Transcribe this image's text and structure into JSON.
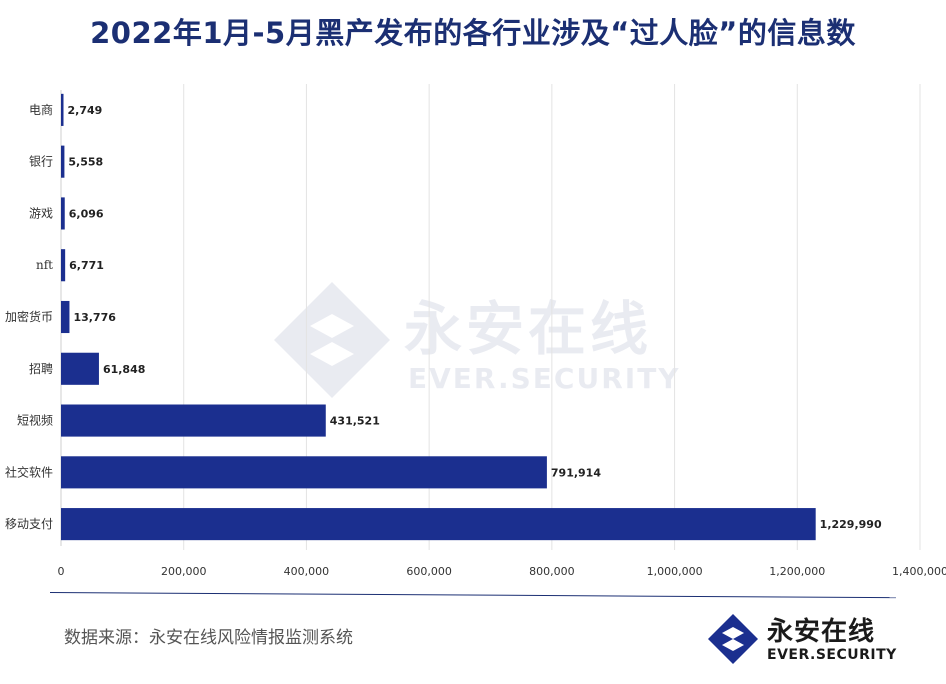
{
  "chart_data": {
    "type": "bar",
    "orientation": "horizontal",
    "title": "2022年1月-5月黑产发布的各行业涉及“过人脸”的信息数",
    "categories": [
      "电商",
      "银行",
      "游戏",
      "nft",
      "加密货币",
      "招聘",
      "短视频",
      "社交软件",
      "移动支付"
    ],
    "values": [
      2749,
      5558,
      6096,
      6771,
      13776,
      61848,
      431521,
      791914,
      1229990
    ],
    "value_labels": [
      "2,749",
      "5,558",
      "6,096",
      "6,771",
      "13,776",
      "61,848",
      "431,521",
      "791,914",
      "1,229,990"
    ],
    "xlim": [
      0,
      1400000
    ],
    "x_ticks": [
      0,
      200000,
      400000,
      600000,
      800000,
      1000000,
      1200000,
      1400000
    ],
    "x_tick_labels": [
      "0",
      "200,000",
      "400,000",
      "600,000",
      "800,000",
      "1,000,000",
      "1,200,000",
      "1,400,000"
    ],
    "xlabel": "",
    "ylabel": "",
    "grid": true,
    "legend": "none",
    "bar_color": "#1b2f8f"
  },
  "footer": {
    "source": "数据来源：永安在线风险情报监测系统"
  },
  "logo": {
    "name": "永安在线",
    "sub": "EVER.SECURITY",
    "icon": "ever-security-logo-icon"
  },
  "watermark": {
    "name": "永安在线",
    "sub": "EVER.SECURITY"
  },
  "colors": {
    "title": "#1b2f73",
    "bar": "#1b2f8f",
    "grid": "#e3e3e3"
  }
}
